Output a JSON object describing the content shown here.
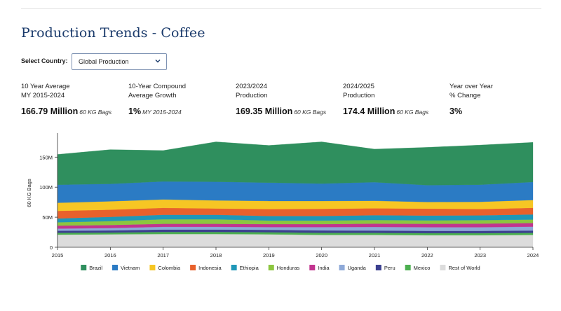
{
  "page": {
    "title": "Production Trends - Coffee"
  },
  "filter": {
    "label": "Select Country:",
    "selected": "Global Production"
  },
  "stats": [
    {
      "label_line1": "10 Year Average",
      "label_line2": "MY 2015-2024",
      "value": "166.79 Million",
      "unit": "60 KG Bags"
    },
    {
      "label_line1": "10-Year Compound",
      "label_line2": "Average Growth",
      "value": "1%",
      "unit": "MY 2015-2024"
    },
    {
      "label_line1": "2023/2024",
      "label_line2": "Production",
      "value": "169.35 Million",
      "unit": "60 KG Bags"
    },
    {
      "label_line1": "2024/2025",
      "label_line2": "Production",
      "value": "174.4 Million",
      "unit": "60 KG Bags"
    },
    {
      "label_line1": "Year over Year",
      "label_line2": "% Change",
      "value": "3%",
      "unit": ""
    }
  ],
  "chart_data": {
    "type": "area",
    "stacked": true,
    "title": "",
    "xlabel": "",
    "ylabel": "60 KG Bags",
    "x": [
      "2015",
      "2016",
      "2017",
      "2018",
      "2019",
      "2020",
      "2021",
      "2022",
      "2023",
      "2024"
    ],
    "ylim": [
      0,
      190000000
    ],
    "yticks": [
      0,
      50000000,
      100000000,
      150000000
    ],
    "ytick_labels": [
      "0",
      "50M",
      "100M",
      "150M"
    ],
    "legend_position": "bottom",
    "grid": false,
    "series": [
      {
        "name": "Rest of World",
        "color": "#dcdcdc",
        "values": [
          21000000,
          21500000,
          22000000,
          22000000,
          21500000,
          20500000,
          20500000,
          20000000,
          20000000,
          20500000
        ]
      },
      {
        "name": "Mexico",
        "color": "#4caf50",
        "values": [
          3000000,
          3000000,
          3500000,
          3500000,
          3500000,
          3500000,
          3500000,
          3500000,
          3500000,
          3500000
        ]
      },
      {
        "name": "Peru",
        "color": "#3b3f8f",
        "values": [
          3500000,
          3500000,
          4000000,
          4000000,
          4000000,
          4000000,
          3800000,
          3800000,
          3800000,
          3800000
        ]
      },
      {
        "name": "Uganda",
        "color": "#8ea9d8",
        "values": [
          3500000,
          4000000,
          4500000,
          4500000,
          4500000,
          5500000,
          6000000,
          6000000,
          6000000,
          6500000
        ]
      },
      {
        "name": "India",
        "color": "#c2348f",
        "values": [
          5000000,
          5000000,
          5000000,
          5000000,
          5000000,
          5000000,
          5500000,
          5700000,
          6000000,
          6000000
        ]
      },
      {
        "name": "Honduras",
        "color": "#8cc63f",
        "values": [
          5500000,
          6500000,
          7500000,
          7500000,
          6000000,
          6000000,
          6000000,
          5800000,
          5800000,
          5800000
        ]
      },
      {
        "name": "Ethiopia",
        "color": "#1f97b8",
        "values": [
          6500000,
          7000000,
          7500000,
          7500000,
          7500000,
          7500000,
          8000000,
          8000000,
          8000000,
          8500000
        ]
      },
      {
        "name": "Indonesia",
        "color": "#e8612c",
        "values": [
          12500000,
          12000000,
          11500000,
          10500000,
          11500000,
          12000000,
          11500000,
          11500000,
          10500000,
          11000000
        ]
      },
      {
        "name": "Colombia",
        "color": "#f6c624",
        "values": [
          13500000,
          14000000,
          14000000,
          13500000,
          13500000,
          13000000,
          12500000,
          11000000,
          12000000,
          13000000
        ]
      },
      {
        "name": "Vietnam",
        "color": "#2b7bc4",
        "values": [
          30000000,
          29000000,
          30000000,
          31000000,
          30500000,
          29000000,
          31000000,
          28000000,
          28500000,
          30000000
        ]
      },
      {
        "name": "Brazil",
        "color": "#2f8f5e",
        "values": [
          50500000,
          57000000,
          51500000,
          66500000,
          62000000,
          69500000,
          55000000,
          63000000,
          66000000,
          66000000
        ]
      }
    ],
    "legend_order": [
      "Brazil",
      "Vietnam",
      "Colombia",
      "Indonesia",
      "Ethiopia",
      "Honduras",
      "India",
      "Uganda",
      "Peru",
      "Mexico",
      "Rest of World"
    ]
  }
}
